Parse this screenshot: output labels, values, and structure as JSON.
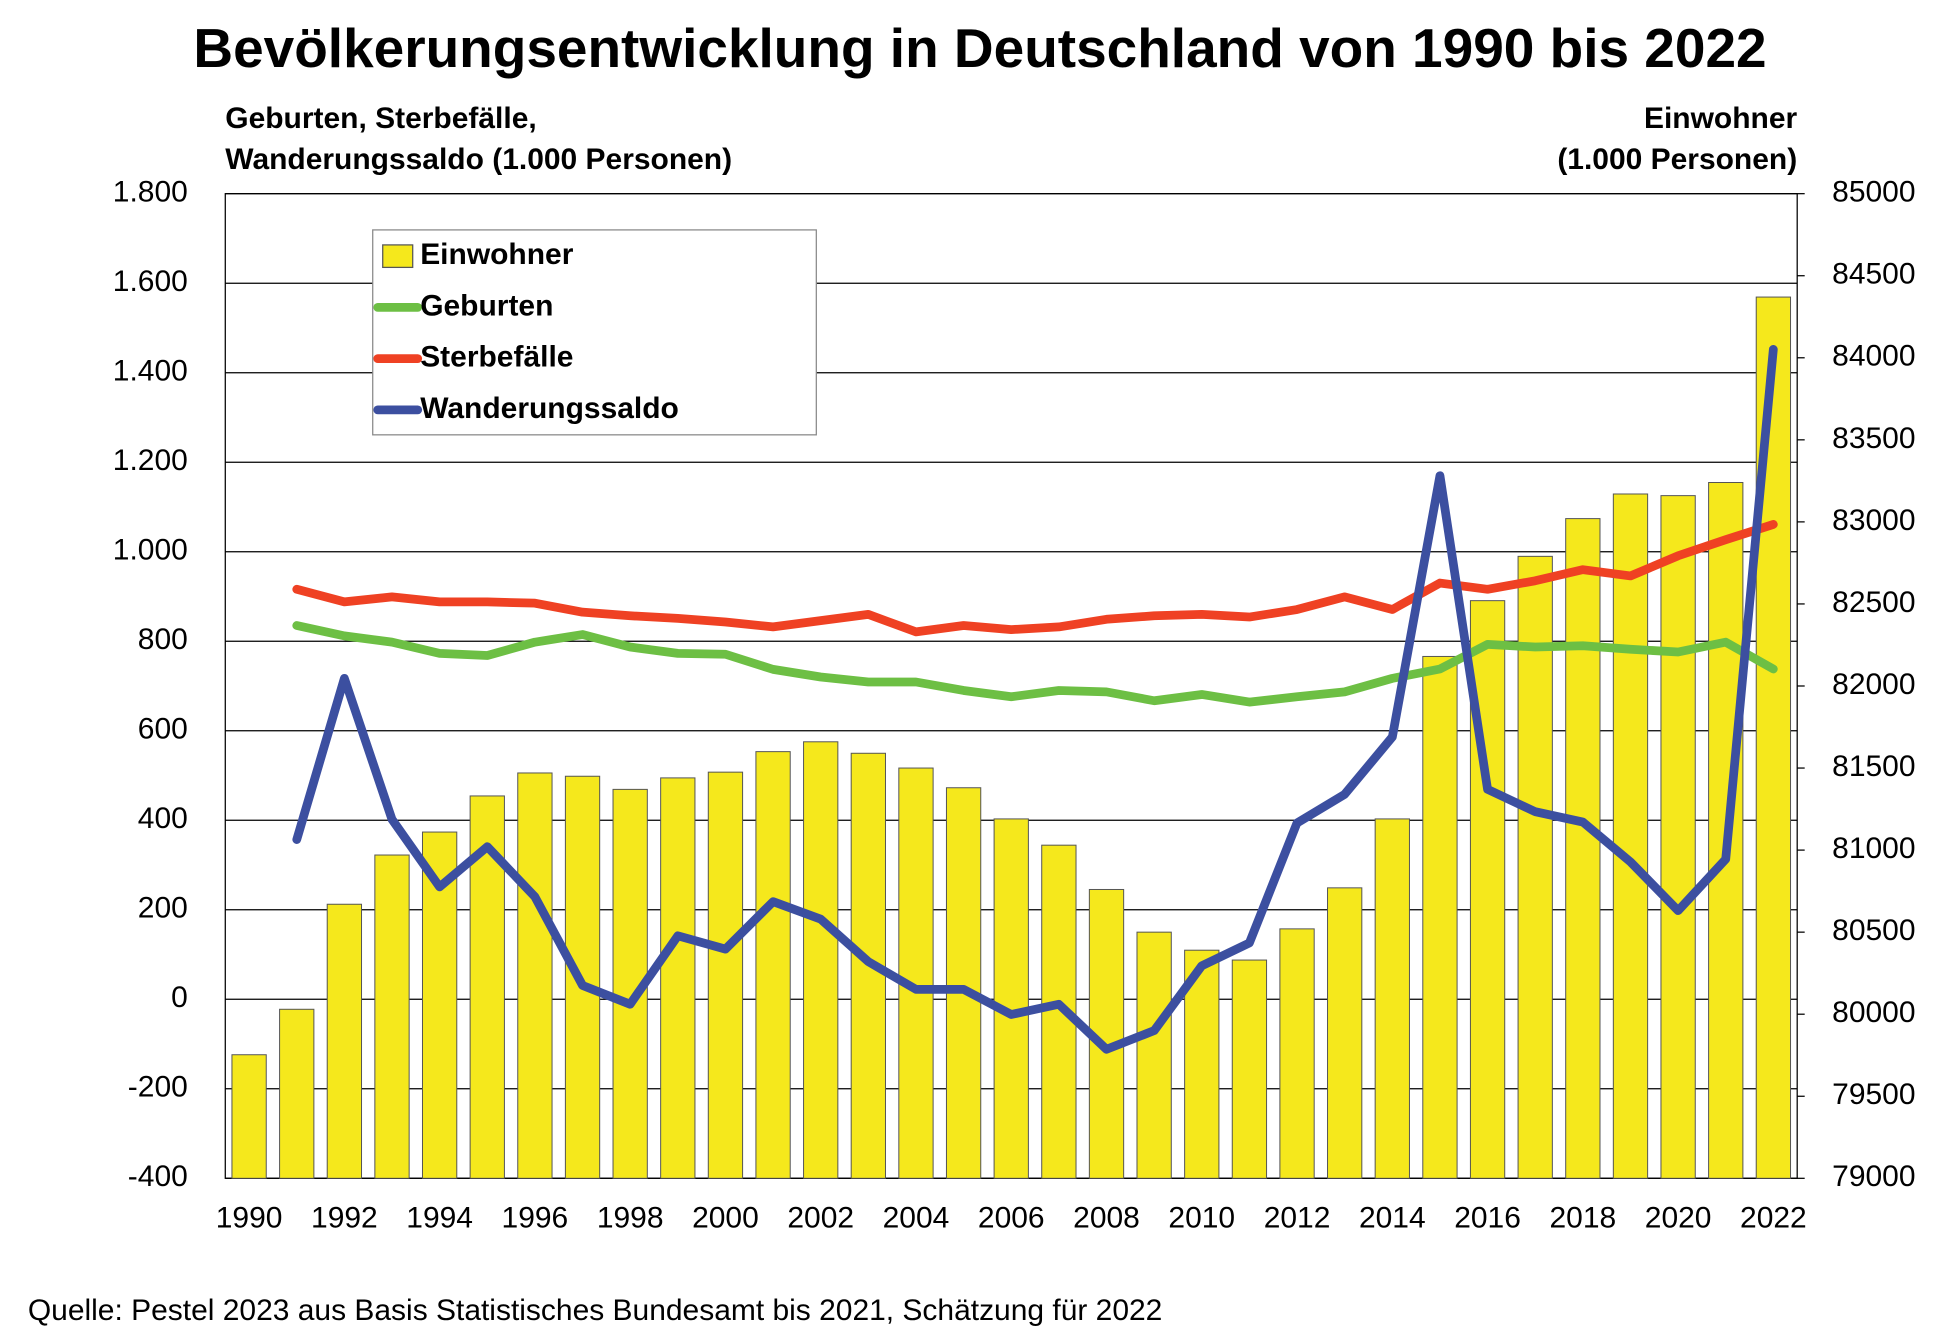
{
  "chart_data": {
    "type": "combo",
    "title": "Bevölkerungsentwicklung in Deutschland von 1990 bis 2022",
    "ylabel": [
      "Geburten, Sterbefälle,",
      "Wanderungssaldo (1.000 Personen)"
    ],
    "y2label": [
      "Einwohner",
      "(1.000 Personen)"
    ],
    "source": "Quelle: Pestel 2023 aus Basis Statistisches Bundesamt bis 2021, Schätzung für 2022",
    "categories": [
      "1990",
      null,
      "1992",
      null,
      "1994",
      null,
      "1996",
      null,
      "1998",
      null,
      "2000",
      null,
      "2002",
      null,
      "2004",
      null,
      "2006",
      null,
      "2008",
      null,
      "2010",
      null,
      "2012",
      null,
      "2014",
      null,
      "2016",
      null,
      "2018",
      null,
      "2020",
      null,
      "2022"
    ],
    "series": [
      {
        "name": "Einwohner",
        "type": "bar",
        "axis": "y2",
        "color": "#f5e81c",
        "values": [
          79753,
          80030,
          80670,
          80970,
          81110,
          81330,
          81470,
          81450,
          81370,
          81440,
          81475,
          81600,
          81660,
          81590,
          81500,
          81380,
          81190,
          81030,
          80760,
          80500,
          80390,
          80330,
          80520,
          80770,
          81190,
          82180,
          82520,
          82790,
          83020,
          83170,
          83160,
          83240,
          84370
        ]
      },
      {
        "name": "Geburten",
        "type": "line",
        "color": "#6dbf44",
        "values": [
          null,
          835,
          812,
          798,
          773,
          768,
          798,
          815,
          787,
          773,
          771,
          737,
          720,
          709,
          709,
          690,
          676,
          690,
          687,
          667,
          681,
          664,
          676,
          687,
          717,
          738,
          793,
          787,
          790,
          782,
          776,
          798,
          738
        ]
      },
      {
        "name": "Sterbefälle",
        "type": "line",
        "color": "#ef4123",
        "values": [
          null,
          916,
          888,
          899,
          888,
          888,
          885,
          865,
          857,
          851,
          843,
          832,
          846,
          860,
          821,
          835,
          826,
          832,
          849,
          857,
          860,
          854,
          871,
          899,
          871,
          930,
          916,
          935,
          960,
          946,
          991,
          1027,
          1061
        ]
      },
      {
        "name": "Wanderungssaldo",
        "type": "line",
        "color": "#3c4fa0",
        "values": [
          null,
          357,
          717,
          402,
          251,
          341,
          229,
          31,
          -11,
          142,
          112,
          218,
          179,
          84,
          22,
          22,
          -34,
          -11,
          -112,
          -70,
          75,
          126,
          394,
          458,
          586,
          1170,
          469,
          419,
          396,
          307,
          198,
          313,
          1452
        ]
      }
    ],
    "ylim": [
      -400,
      1800
    ],
    "yticks": [
      -400,
      -200,
      0,
      200,
      400,
      600,
      800,
      {
        "value": 1000,
        "label": "1.000"
      },
      {
        "value": 1200,
        "label": "1.200"
      },
      {
        "value": 1400,
        "label": "1.400"
      },
      {
        "value": 1600,
        "label": "1.600"
      },
      {
        "value": 1800,
        "label": "1.800"
      }
    ],
    "y2lim": [
      79000,
      85000
    ],
    "y2ticks": [
      79000,
      79500,
      80000,
      80500,
      81000,
      81500,
      82000,
      82500,
      83000,
      83500,
      84000,
      84500,
      85000
    ],
    "grid": true,
    "legend": "upper left"
  }
}
